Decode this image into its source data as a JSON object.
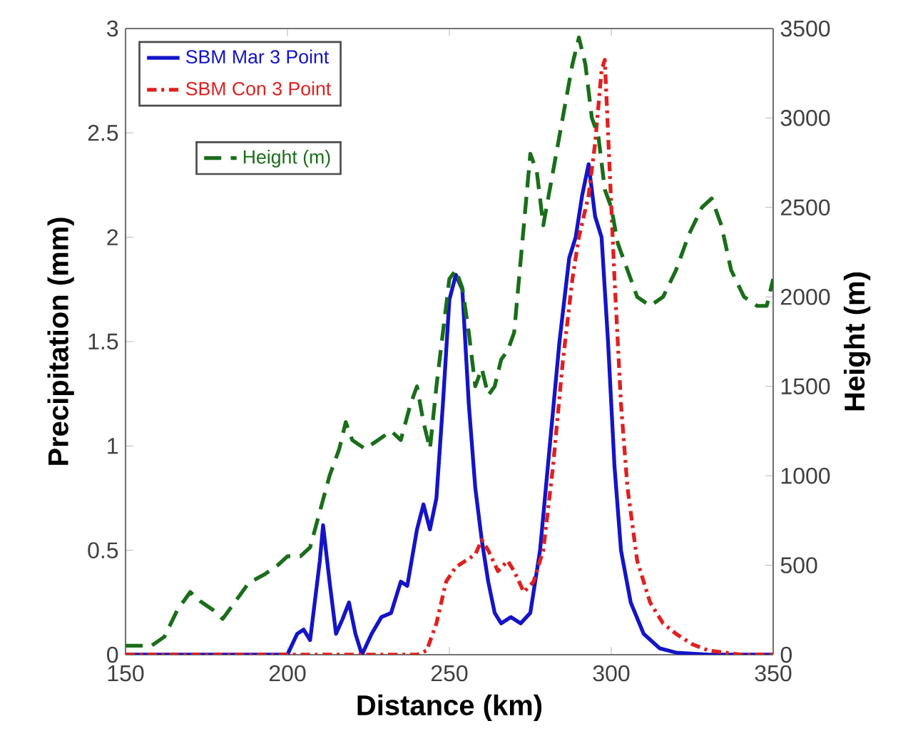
{
  "chart_data": {
    "type": "line",
    "xlabel": "Distance (km)",
    "ylabel": "Precipitation (mm)",
    "y2label": "Height (m)",
    "xlim": [
      150,
      350
    ],
    "xticks": [
      150,
      200,
      250,
      300,
      350
    ],
    "ylim": [
      0,
      3
    ],
    "yticks": [
      0,
      0.5,
      1,
      1.5,
      2,
      2.5,
      3
    ],
    "y2lim": [
      0,
      3500
    ],
    "y2ticks": [
      0,
      500,
      1000,
      1500,
      2000,
      2500,
      3000,
      3500
    ],
    "legend": "top left",
    "series": [
      {
        "name": "SBM Mar 3 Point",
        "color": "#1414c8",
        "line_style": "solid",
        "x": [
          150,
          200,
          203,
          205,
          207,
          210,
          211,
          213,
          215,
          217,
          219,
          221,
          223,
          226,
          229,
          232,
          235,
          237,
          240,
          242,
          244,
          246,
          248,
          250,
          252,
          254,
          256,
          258,
          260,
          262,
          264,
          266,
          269,
          272,
          275,
          278,
          281,
          284,
          287,
          289,
          291,
          293,
          295,
          297,
          299,
          301,
          303,
          306,
          310,
          315,
          320,
          330,
          350
        ],
        "values": [
          0,
          0,
          0.1,
          0.12,
          0.07,
          0.45,
          0.62,
          0.35,
          0.1,
          0.17,
          0.25,
          0.1,
          0,
          0.1,
          0.18,
          0.2,
          0.35,
          0.33,
          0.6,
          0.72,
          0.6,
          0.75,
          1.2,
          1.7,
          1.82,
          1.75,
          1.2,
          0.8,
          0.55,
          0.35,
          0.2,
          0.15,
          0.18,
          0.15,
          0.2,
          0.5,
          1.0,
          1.5,
          1.9,
          2.0,
          2.2,
          2.35,
          2.1,
          2.0,
          1.5,
          0.9,
          0.5,
          0.25,
          0.1,
          0.03,
          0.01,
          0,
          0
        ]
      },
      {
        "name": "SBM Con 3 Point",
        "color": "#e02020",
        "line_style": "dashdot",
        "x": [
          150,
          240,
          243,
          246,
          249,
          252,
          255,
          258,
          260,
          262,
          265,
          268,
          270,
          273,
          276,
          279,
          282,
          285,
          288,
          290,
          293,
          295,
          297,
          298,
          299,
          301,
          303,
          305,
          308,
          312,
          316,
          320,
          325,
          330,
          340,
          350
        ],
        "values": [
          0,
          0,
          0.02,
          0.15,
          0.35,
          0.42,
          0.45,
          0.48,
          0.55,
          0.5,
          0.4,
          0.45,
          0.4,
          0.3,
          0.35,
          0.5,
          0.9,
          1.4,
          1.8,
          2.0,
          2.2,
          2.45,
          2.8,
          2.85,
          2.5,
          1.8,
          1.2,
          0.8,
          0.45,
          0.25,
          0.15,
          0.1,
          0.05,
          0.02,
          0,
          0
        ]
      },
      {
        "name": "Height (m)",
        "color": "#1a6e1a",
        "line_style": "dashed",
        "axis": "y2",
        "x": [
          150,
          158,
          162,
          166,
          170,
          173,
          177,
          180,
          184,
          188,
          193,
          197,
          200,
          204,
          207,
          210,
          213,
          216,
          218,
          220,
          224,
          228,
          232,
          235,
          238,
          240,
          242,
          244,
          246,
          248,
          250,
          252,
          254,
          256,
          258,
          260,
          262,
          264,
          266,
          268,
          270,
          272,
          275,
          277,
          279,
          282,
          285,
          288,
          290,
          292,
          294,
          296,
          298,
          300,
          302,
          305,
          308,
          312,
          316,
          320,
          324,
          328,
          331,
          334,
          337,
          341,
          345,
          348,
          350
        ],
        "values": [
          50,
          50,
          100,
          250,
          350,
          300,
          250,
          200,
          300,
          400,
          450,
          500,
          550,
          550,
          600,
          800,
          1000,
          1150,
          1300,
          1200,
          1150,
          1200,
          1250,
          1200,
          1400,
          1500,
          1300,
          1150,
          1500,
          1800,
          2100,
          2150,
          2050,
          1800,
          1500,
          1600,
          1450,
          1500,
          1650,
          1700,
          1800,
          2200,
          2800,
          2700,
          2400,
          2700,
          3000,
          3300,
          3450,
          3300,
          3000,
          2900,
          2600,
          2500,
          2300,
          2150,
          2000,
          1950,
          2000,
          2150,
          2350,
          2500,
          2550,
          2400,
          2150,
          2000,
          1950,
          1950,
          2100
        ]
      }
    ]
  }
}
